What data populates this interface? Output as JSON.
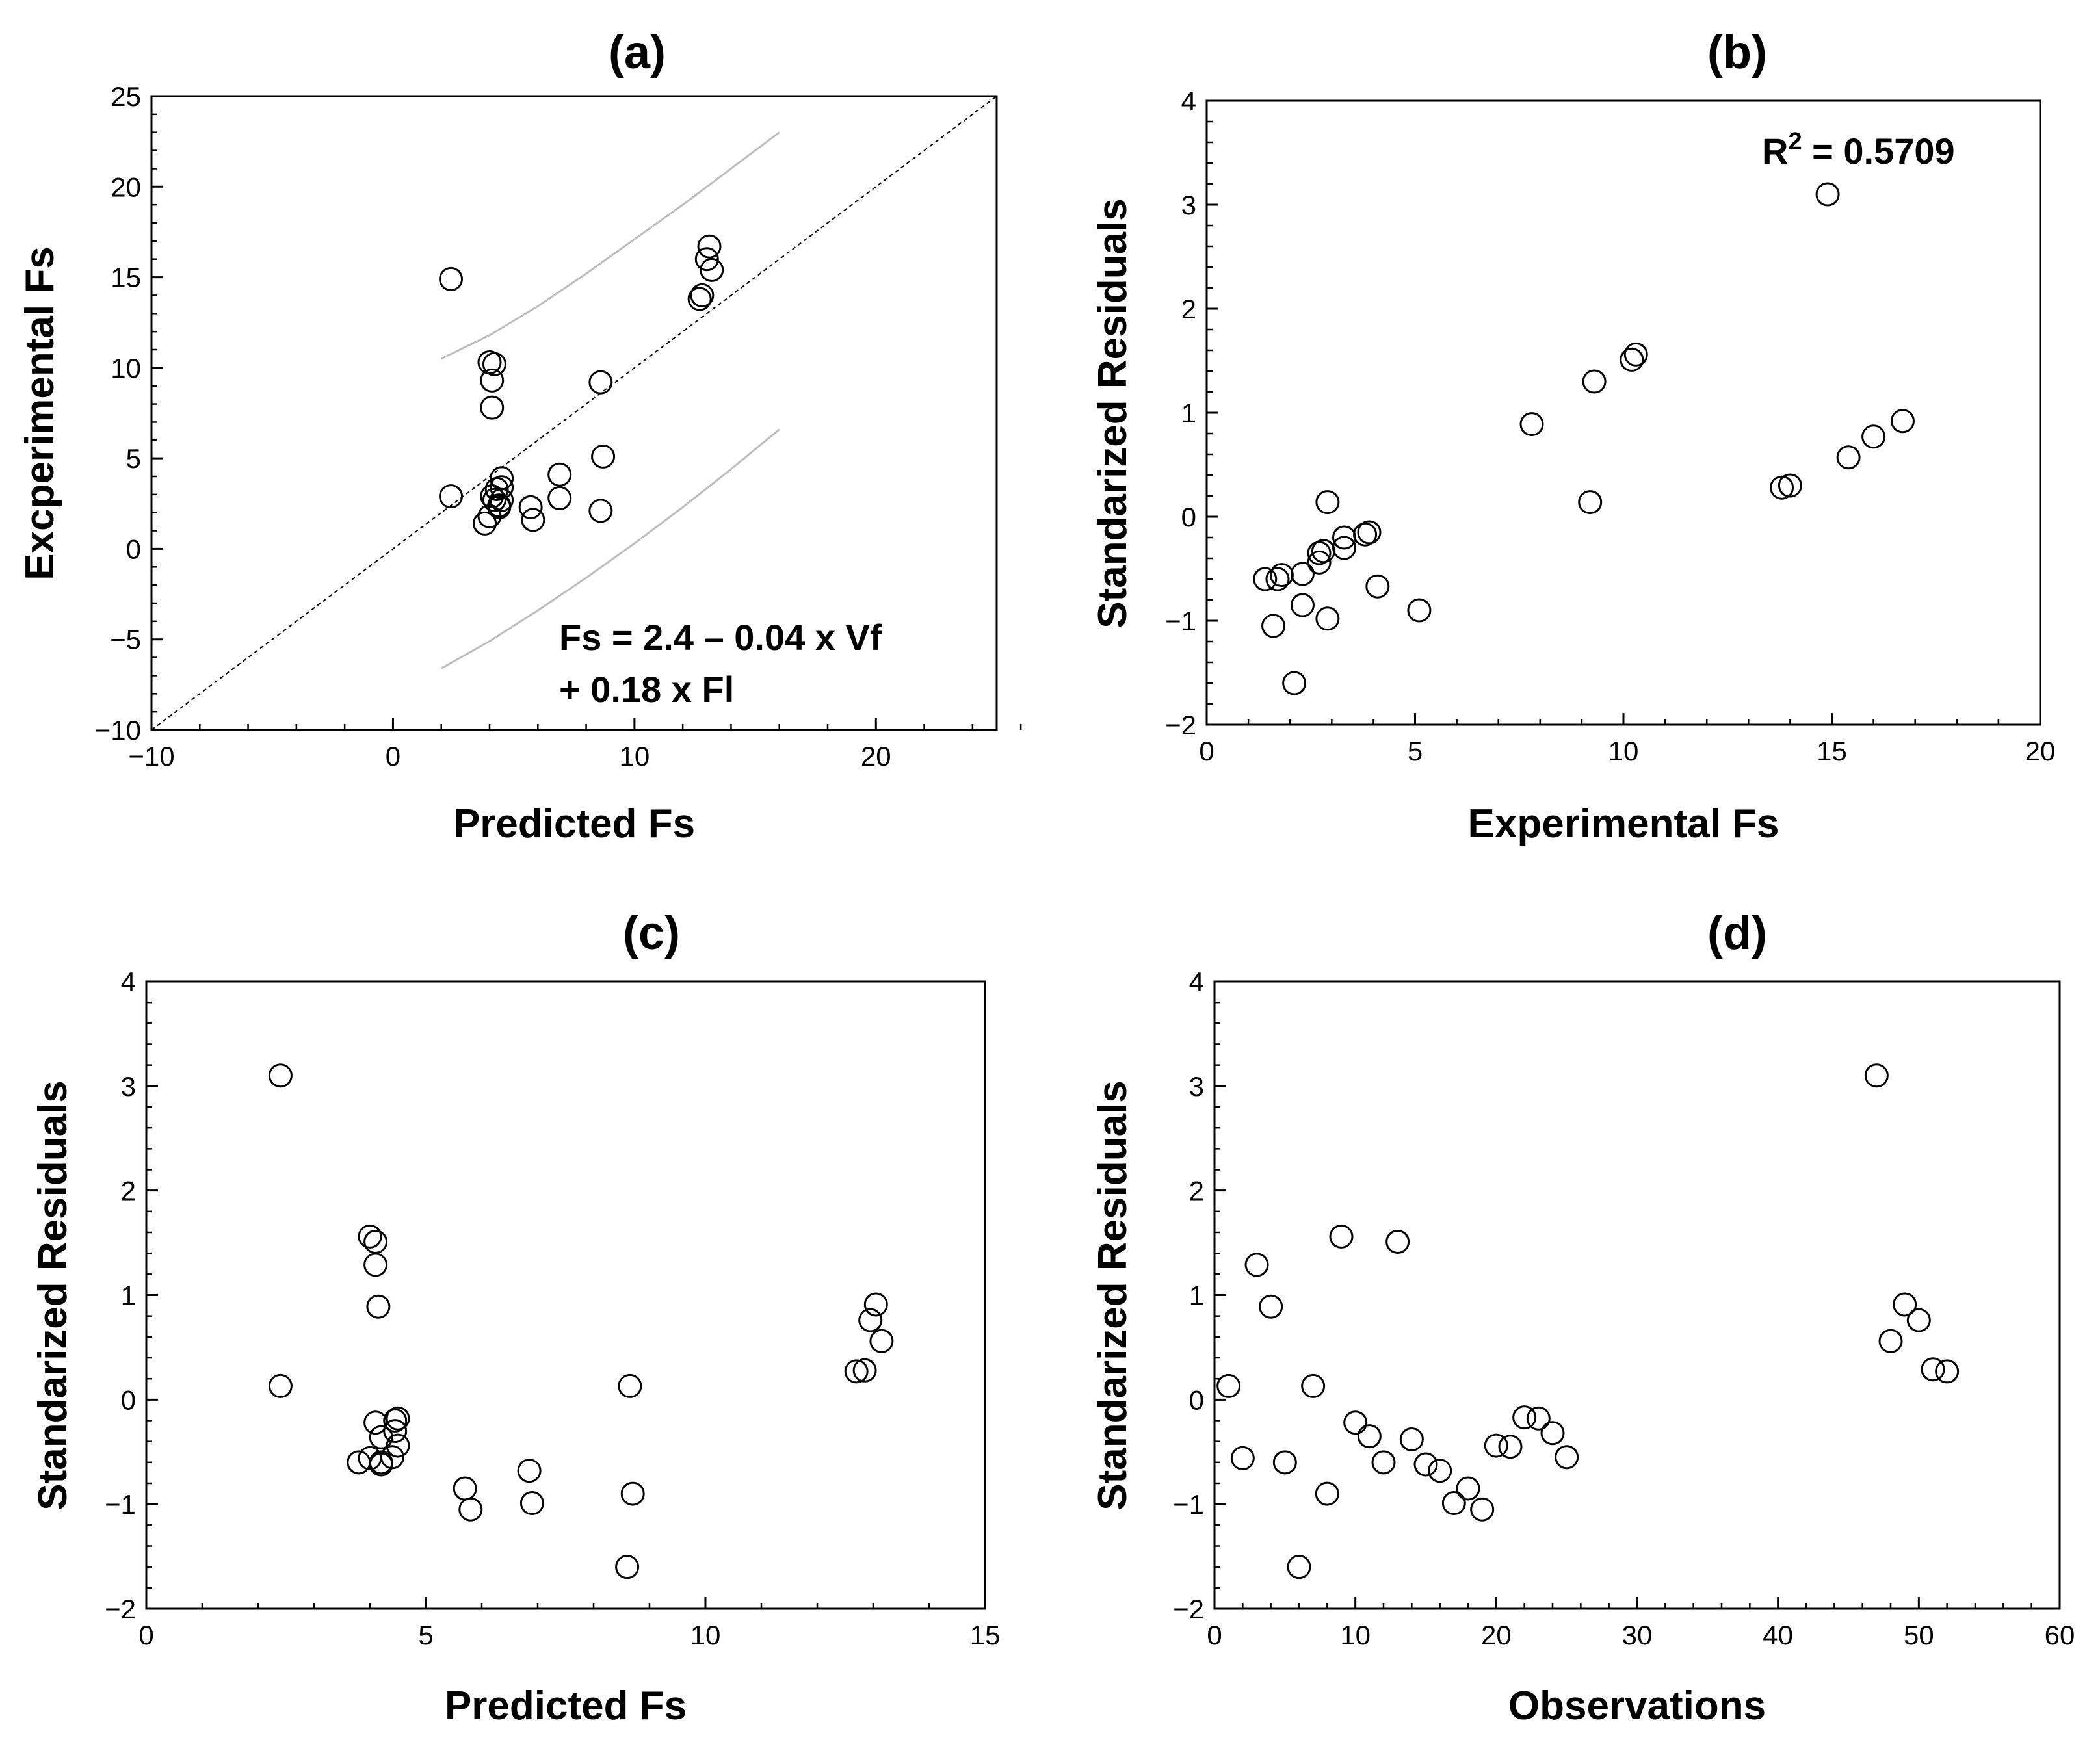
{
  "chart_data": [
    {
      "id": "a",
      "type": "scatter",
      "title": "(a)",
      "xlabel": "Predicted Fs",
      "ylabel": "Excperimental Fs",
      "xlim": [
        -10,
        25
      ],
      "ylim": [
        -10,
        25
      ],
      "xticks": [
        -10,
        0,
        10,
        20
      ],
      "xticks_minor_step": 2,
      "yticks": [
        -10,
        -5,
        0,
        5,
        10,
        15,
        20,
        25
      ],
      "yticks_minor_step": 1,
      "annotation_lines": [
        "Fs = 2.4 – 0.04 x Vf",
        "+ 0.18 x Fl"
      ],
      "reference_line": {
        "label": "1:1 line",
        "x": [
          -10,
          25
        ],
        "y": [
          -10,
          25
        ],
        "style": "dashed"
      },
      "band_lines": [
        {
          "label": "upper bound",
          "x": [
            2,
            4,
            6,
            8,
            10,
            12,
            14,
            16
          ],
          "y": [
            10.5,
            11.8,
            13.4,
            15.2,
            17.1,
            19.0,
            21.0,
            23.0
          ],
          "color": "#bdbdbd"
        },
        {
          "label": "lower bound",
          "x": [
            2,
            4,
            6,
            8,
            10,
            12,
            14,
            16
          ],
          "y": [
            -6.6,
            -5.1,
            -3.4,
            -1.6,
            0.3,
            2.3,
            4.4,
            6.6
          ],
          "color": "#bdbdbd"
        }
      ],
      "points": {
        "x": [
          2.4,
          2.4,
          4.0,
          4.2,
          4.1,
          4.1,
          4.5,
          4.5,
          4.3,
          4.5,
          4.4,
          4.1,
          4.2,
          4.0,
          4.4,
          3.8,
          5.7,
          5.8,
          6.9,
          6.9,
          8.6,
          8.7,
          8.6,
          12.7,
          12.8,
          13.0,
          13.1,
          13.2
        ],
        "y": [
          14.9,
          2.9,
          10.3,
          10.2,
          9.3,
          7.8,
          3.9,
          3.4,
          3.3,
          2.7,
          2.4,
          2.9,
          2.7,
          1.8,
          2.3,
          1.4,
          2.3,
          1.6,
          4.1,
          2.8,
          9.2,
          5.1,
          2.1,
          13.8,
          14.0,
          16.0,
          16.7,
          15.4
        ]
      }
    },
    {
      "id": "b",
      "type": "scatter",
      "title": "(b)",
      "xlabel": "Experimental Fs",
      "ylabel": "Standarized Residuals",
      "xlim": [
        0,
        20
      ],
      "ylim": [
        -2,
        4
      ],
      "xticks": [
        0,
        5,
        10,
        15,
        20
      ],
      "xticks_minor_step": 1,
      "yticks": [
        -2,
        -1,
        0,
        1,
        2,
        3,
        4
      ],
      "yticks_minor_step": 0.2,
      "annotation": {
        "prefix": "R",
        "superscript": "2",
        "suffix": " = 0.5709"
      },
      "points": {
        "x": [
          1.4,
          1.6,
          1.7,
          1.8,
          2.1,
          2.3,
          2.3,
          2.7,
          2.7,
          2.8,
          2.9,
          2.9,
          3.3,
          3.3,
          3.8,
          3.9,
          4.1,
          5.1,
          7.8,
          9.2,
          9.3,
          10.2,
          10.3,
          13.8,
          14.0,
          14.9,
          15.4,
          16.0,
          16.7
        ],
        "y": [
          -0.6,
          -1.05,
          -0.6,
          -0.56,
          -1.6,
          -0.55,
          -0.85,
          -0.35,
          -0.44,
          -0.33,
          0.14,
          -0.98,
          -0.3,
          -0.2,
          -0.17,
          -0.15,
          -0.67,
          -0.9,
          0.89,
          0.14,
          1.3,
          1.51,
          1.56,
          0.28,
          0.3,
          3.1,
          0.57,
          0.77,
          0.92
        ]
      }
    },
    {
      "id": "c",
      "type": "scatter",
      "title": "(c)",
      "xlabel": "Predicted Fs",
      "ylabel": "Standarized Residuals",
      "xlim": [
        0,
        15
      ],
      "ylim": [
        -2,
        4
      ],
      "xticks": [
        0,
        5,
        10,
        15
      ],
      "xticks_minor_step": 1,
      "yticks": [
        -2,
        -1,
        0,
        1,
        2,
        3,
        4
      ],
      "yticks_minor_step": 0.2,
      "points": {
        "x": [
          2.4,
          2.4,
          3.8,
          4.0,
          4.0,
          4.1,
          4.1,
          4.15,
          4.1,
          4.2,
          4.2,
          4.2,
          4.4,
          4.5,
          4.45,
          4.5,
          4.45,
          5.7,
          5.8,
          6.85,
          6.9,
          8.6,
          8.65,
          8.7,
          12.7,
          12.85,
          12.95,
          13.05,
          13.15
        ],
        "y": [
          3.1,
          0.13,
          -0.6,
          -0.56,
          1.56,
          1.29,
          1.51,
          0.89,
          -0.22,
          -0.36,
          -0.6,
          -0.62,
          -0.55,
          -0.18,
          -0.2,
          -0.44,
          -0.3,
          -0.85,
          -1.05,
          -0.68,
          -0.99,
          -1.6,
          0.13,
          -0.9,
          0.27,
          0.28,
          0.76,
          0.91,
          0.56
        ]
      }
    },
    {
      "id": "d",
      "type": "scatter",
      "title": "(d)",
      "xlabel": "Observations",
      "ylabel": "Standarized Residuals",
      "xlim": [
        0,
        60
      ],
      "ylim": [
        -2,
        4
      ],
      "xticks": [
        0,
        10,
        20,
        30,
        40,
        50,
        60
      ],
      "xticks_minor_step": 2,
      "yticks": [
        -2,
        -1,
        0,
        1,
        2,
        3,
        4
      ],
      "yticks_minor_step": 0.2,
      "points": {
        "x": [
          1,
          2,
          3,
          4,
          5,
          6,
          7,
          8,
          9,
          10,
          11,
          12,
          13,
          14,
          15,
          16,
          17,
          18,
          19,
          20,
          21,
          22,
          23,
          24,
          25,
          47,
          48,
          49,
          50,
          51,
          52
        ],
        "y": [
          0.13,
          -0.56,
          1.29,
          0.89,
          -0.6,
          -1.6,
          0.13,
          -0.9,
          1.56,
          -0.22,
          -0.35,
          -0.6,
          1.51,
          -0.38,
          -0.62,
          -0.68,
          -0.99,
          -0.85,
          -1.05,
          -0.44,
          -0.45,
          -0.17,
          -0.18,
          -0.32,
          -0.55,
          3.1,
          0.56,
          0.91,
          0.76,
          0.29,
          0.27
        ]
      }
    }
  ]
}
